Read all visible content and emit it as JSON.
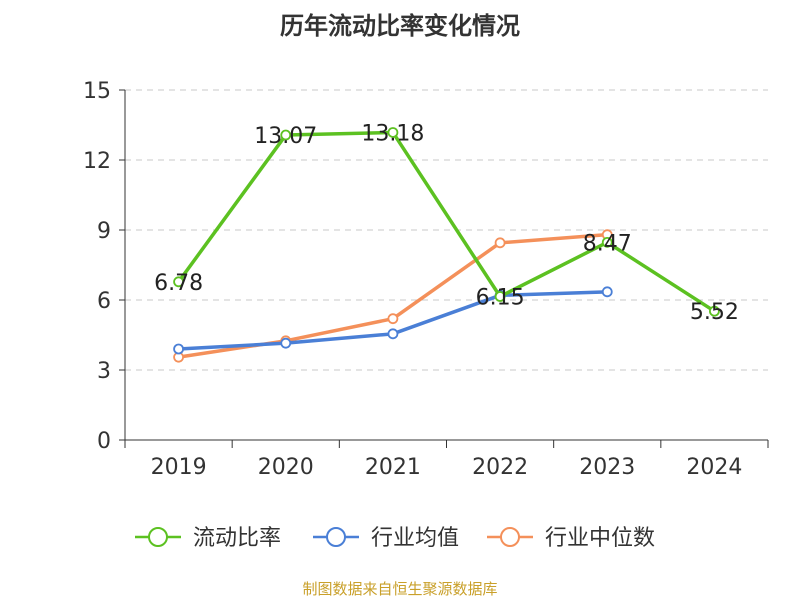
{
  "title": "历年流动比率变化情况",
  "source": "制图数据来自恒生聚源数据库",
  "chart_data": {
    "type": "line",
    "title": "历年流动比率变化情况",
    "categories": [
      "2019",
      "2020",
      "2021",
      "2022",
      "2023",
      "2024"
    ],
    "ylim": [
      0,
      15
    ],
    "yticks": [
      0,
      3,
      6,
      9,
      12,
      15
    ],
    "grid": true,
    "legend_position": "bottom",
    "series": [
      {
        "name": "流动比率",
        "color": "#5cc121",
        "values": [
          6.78,
          13.07,
          13.18,
          6.15,
          8.47,
          5.52
        ],
        "labels": [
          "6.78",
          "13.07",
          "13.18",
          "6.15",
          "8.47",
          "5.52"
        ]
      },
      {
        "name": "行业均值",
        "color": "#4a7fd6",
        "values": [
          3.9,
          4.15,
          4.55,
          6.2,
          6.35,
          null
        ]
      },
      {
        "name": "行业中位数",
        "color": "#f4905a",
        "values": [
          3.55,
          4.25,
          5.2,
          8.45,
          8.8,
          null
        ]
      }
    ]
  }
}
